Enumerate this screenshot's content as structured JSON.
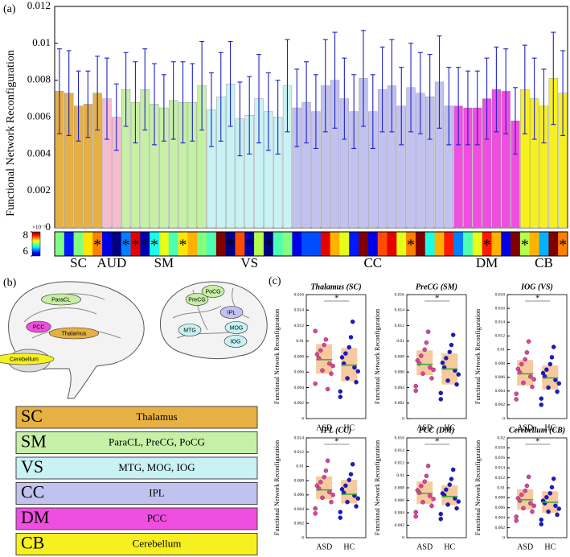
{
  "panel_labels": [
    "(a)",
    "(b)",
    "(c)"
  ],
  "chart_data": [
    {
      "type": "bar",
      "ylabel": "Functional Network Reconfiguration",
      "ylim": [
        0,
        0.012
      ],
      "yticks": [
        0,
        0.002,
        0.004,
        0.006,
        0.008,
        0.01,
        0.012
      ],
      "error_color": "#1e22c8",
      "series": [
        {
          "name": "SC",
          "color": "#e6b043",
          "values": [
            0.0074,
            0.0073,
            0.0066,
            0.0067,
            0.0073
          ],
          "errors": [
            0.0023,
            0.0023,
            0.0019,
            0.0018,
            0.002
          ]
        },
        {
          "name": "AUD",
          "color": "#f5bcd0",
          "values": [
            0.007,
            0.006
          ],
          "errors": [
            0.0022,
            0.0018
          ]
        },
        {
          "name": "SM",
          "color": "#c6f0a6",
          "values": [
            0.0075,
            0.0068,
            0.0075,
            0.0067,
            0.0065,
            0.0069,
            0.0068,
            0.0068,
            0.0077
          ],
          "errors": [
            0.002,
            0.0022,
            0.0022,
            0.0022,
            0.0018,
            0.0021,
            0.0022,
            0.0021,
            0.0024
          ]
        },
        {
          "name": "VS",
          "color": "#c8f2f4",
          "values": [
            0.0064,
            0.0071,
            0.0078,
            0.0059,
            0.0061,
            0.007,
            0.0063,
            0.006,
            0.0077
          ],
          "errors": [
            0.002,
            0.0024,
            0.0023,
            0.002,
            0.0021,
            0.0024,
            0.0021,
            0.002,
            0.0025
          ]
        },
        {
          "name": "CC",
          "color": "#c2c2f0",
          "values": [
            0.0065,
            0.0068,
            0.0063,
            0.0077,
            0.008,
            0.007,
            0.0063,
            0.0081,
            0.0063,
            0.0075,
            0.0077,
            0.0066,
            0.0076,
            0.0073,
            0.0071,
            0.0079,
            0.0066
          ],
          "errors": [
            0.0021,
            0.0022,
            0.002,
            0.0025,
            0.0026,
            0.0022,
            0.002,
            0.0026,
            0.002,
            0.0023,
            0.0025,
            0.0021,
            0.0024,
            0.0022,
            0.0023,
            0.0025,
            0.0021
          ]
        },
        {
          "name": "DM",
          "color": "#f04ee0",
          "values": [
            0.0066,
            0.0065,
            0.0065,
            0.007,
            0.0075,
            0.0074,
            0.0058
          ],
          "errors": [
            0.0021,
            0.002,
            0.002,
            0.0022,
            0.0023,
            0.0023,
            0.0018
          ]
        },
        {
          "name": "CB",
          "color": "#f7f020",
          "values": [
            0.0075,
            0.007,
            0.0066,
            0.0081,
            0.0073
          ],
          "errors": [
            0.0024,
            0.0022,
            0.002,
            0.0025,
            0.0023
          ]
        }
      ],
      "heatmap": {
        "scale_label": "×10⁻³",
        "range": [
          6,
          8
        ],
        "ticks": [
          8,
          6
        ],
        "star": "*",
        "values": [
          7.0,
          6.3,
          7.0,
          7.3,
          7.5,
          6.2,
          6.0,
          6.5,
          7.8,
          6.1,
          6.8,
          7.2,
          6.9,
          7.3,
          7.4,
          7.0,
          6.9,
          8.0,
          6.0,
          7.6,
          6.1,
          7.1,
          6.0,
          6.9,
          7.0,
          6.2,
          6.4,
          6.4,
          7.8,
          7.4,
          7.2,
          6.3,
          8.4,
          6.2,
          7.6,
          7.8,
          7.2,
          7.5,
          8.3,
          6.8,
          7.4,
          7.7,
          6.5,
          6.9,
          7.2,
          7.7,
          7.4,
          6.2,
          8.0,
          7.1,
          7.4,
          6.6,
          8.4,
          7.5
        ],
        "significant": [
          false,
          false,
          false,
          false,
          true,
          false,
          false,
          true,
          true,
          true,
          true,
          false,
          false,
          true,
          false,
          false,
          false,
          false,
          true,
          false,
          true,
          false,
          true,
          false,
          false,
          false,
          false,
          false,
          false,
          false,
          false,
          false,
          false,
          false,
          false,
          false,
          false,
          true,
          false,
          false,
          false,
          false,
          false,
          false,
          false,
          true,
          false,
          false,
          false,
          true,
          false,
          false,
          false,
          true
        ]
      }
    },
    {
      "type": "box",
      "title": "Thalamus (SC)",
      "ylim": [
        0,
        0.016
      ],
      "yticks": [
        0,
        0.002,
        0.004,
        0.006,
        0.008,
        0.01,
        0.012,
        0.014,
        0.016
      ],
      "significance": "*",
      "groups": [
        {
          "name": "ASD",
          "color": "#e0409e",
          "q1": 0.0058,
          "median": 0.0076,
          "q3": 0.0096,
          "points": [
            0.0045,
            0.0062,
            0.0071,
            0.0083,
            0.0095,
            0.0058,
            0.0078,
            0.0102,
            0.0068,
            0.0088,
            0.0038,
            0.0113
          ]
        },
        {
          "name": "HC",
          "color": "#1818d2",
          "q1": 0.0048,
          "median": 0.0069,
          "q3": 0.0091,
          "points": [
            0.0035,
            0.0052,
            0.0066,
            0.0079,
            0.0092,
            0.0047,
            0.0071,
            0.0105,
            0.0061,
            0.0084,
            0.0125,
            0.0028
          ]
        }
      ]
    },
    {
      "type": "box",
      "title": "PreCG (SM)",
      "ylim": [
        0,
        0.016
      ],
      "yticks": [
        0,
        0.002,
        0.004,
        0.006,
        0.008,
        0.01,
        0.012,
        0.014,
        0.016
      ],
      "significance": "*",
      "groups": [
        {
          "name": "ASD",
          "color": "#e0409e",
          "q1": 0.0056,
          "median": 0.007,
          "q3": 0.0088,
          "points": [
            0.0042,
            0.0058,
            0.0066,
            0.0075,
            0.0089,
            0.0052,
            0.0071,
            0.0098,
            0.0063,
            0.0081,
            0.0112,
            0.0036
          ]
        },
        {
          "name": "HC",
          "color": "#1818d2",
          "q1": 0.0044,
          "median": 0.0064,
          "q3": 0.0084,
          "points": [
            0.0033,
            0.0049,
            0.0062,
            0.0072,
            0.0086,
            0.0044,
            0.0066,
            0.0095,
            0.0057,
            0.0078,
            0.0108,
            0.0025
          ]
        }
      ]
    },
    {
      "type": "box",
      "title": "IOG (VS)",
      "ylim": [
        0,
        0.018
      ],
      "yticks": [
        0,
        0.002,
        0.004,
        0.006,
        0.008,
        0.01,
        0.012,
        0.014,
        0.016,
        0.018
      ],
      "significance": "*",
      "groups": [
        {
          "name": "ASD",
          "color": "#e0409e",
          "q1": 0.0048,
          "median": 0.0065,
          "q3": 0.0085,
          "points": [
            0.0036,
            0.0052,
            0.0061,
            0.0072,
            0.0086,
            0.0046,
            0.0067,
            0.0096,
            0.0057,
            0.0079,
            0.0112,
            0.0028
          ]
        },
        {
          "name": "HC",
          "color": "#1818d2",
          "q1": 0.0042,
          "median": 0.0059,
          "q3": 0.0077,
          "points": [
            0.0029,
            0.0045,
            0.0056,
            0.0066,
            0.0079,
            0.0039,
            0.0061,
            0.0089,
            0.0051,
            0.0071,
            0.0104,
            0.002
          ]
        }
      ]
    },
    {
      "type": "box",
      "title": "IPL (CC)",
      "ylim": [
        0,
        0.014
      ],
      "yticks": [
        0,
        0.002,
        0.004,
        0.006,
        0.008,
        0.01,
        0.012,
        0.014
      ],
      "significance": "*",
      "groups": [
        {
          "name": "ASD",
          "color": "#e0409e",
          "q1": 0.0054,
          "median": 0.0067,
          "q3": 0.0086,
          "points": [
            0.0041,
            0.0056,
            0.0064,
            0.0073,
            0.0085,
            0.005,
            0.0069,
            0.0094,
            0.006,
            0.0078,
            0.0108,
            0.0034
          ]
        },
        {
          "name": "HC",
          "color": "#1818d2",
          "q1": 0.0048,
          "median": 0.0061,
          "q3": 0.0081,
          "points": [
            0.0036,
            0.005,
            0.0059,
            0.0068,
            0.0081,
            0.0044,
            0.0063,
            0.0089,
            0.0055,
            0.0073,
            0.0103,
            0.0028
          ]
        }
      ]
    },
    {
      "type": "box",
      "title": "PCC (DM)",
      "ylim": [
        0,
        0.016
      ],
      "yticks": [
        0,
        0.002,
        0.004,
        0.006,
        0.008,
        0.01,
        0.012,
        0.014,
        0.016
      ],
      "significance": "*",
      "groups": [
        {
          "name": "ASD",
          "color": "#e0409e",
          "q1": 0.0054,
          "median": 0.0071,
          "q3": 0.009,
          "points": [
            0.0041,
            0.0057,
            0.0067,
            0.0076,
            0.009,
            0.0051,
            0.0072,
            0.0099,
            0.0062,
            0.0083,
            0.0115,
            0.0034
          ]
        },
        {
          "name": "HC",
          "color": "#1818d2",
          "q1": 0.0052,
          "median": 0.0066,
          "q3": 0.0084,
          "points": [
            0.0038,
            0.0053,
            0.0063,
            0.0071,
            0.0085,
            0.0047,
            0.0068,
            0.0094,
            0.0058,
            0.0077,
            0.0109,
            0.003
          ]
        }
      ]
    },
    {
      "type": "box",
      "title": "Cerebellum (CB)",
      "ylim": [
        0,
        0.02
      ],
      "yticks": [
        0,
        0.002,
        0.004,
        0.006,
        0.008,
        0.01,
        0.012,
        0.014,
        0.016,
        0.018,
        0.02
      ],
      "significance": "*",
      "groups": [
        {
          "name": "ASD",
          "color": "#e0409e",
          "q1": 0.0056,
          "median": 0.0076,
          "q3": 0.0097,
          "points": [
            0.0042,
            0.0059,
            0.0069,
            0.0079,
            0.0094,
            0.0052,
            0.0074,
            0.0104,
            0.0064,
            0.0086,
            0.0122,
            0.0034
          ]
        },
        {
          "name": "HC",
          "color": "#1818d2",
          "q1": 0.005,
          "median": 0.0071,
          "q3": 0.0093,
          "points": [
            0.0036,
            0.0052,
            0.0064,
            0.0074,
            0.0089,
            0.0046,
            0.0069,
            0.0101,
            0.0058,
            0.0081,
            0.0118,
            0.0027
          ]
        }
      ]
    }
  ],
  "box_style": {
    "ylabel": "Functional Network Reconfiguration",
    "box_color": "#f6c08e",
    "median_color": "#3aa83a"
  },
  "brain": {
    "sagittal_labels": [
      "ParaCL",
      "PCC",
      "Thalamus",
      "Cerebellum"
    ],
    "lateral_labels": [
      "PreCG",
      "PoCG",
      "IPL",
      "MTG",
      "MOG",
      "IOG"
    ]
  },
  "table": {
    "rows": [
      {
        "network": "SC",
        "regions": "Thalamus",
        "color": "#e6b043"
      },
      {
        "network": "SM",
        "regions": "ParaCL, PreCG, PoCG",
        "color": "#c6f0a6"
      },
      {
        "network": "VS",
        "regions": "MTG, MOG, IOG",
        "color": "#c8f2f4"
      },
      {
        "network": "CC",
        "regions": "IPL",
        "color": "#c2c2f0"
      },
      {
        "network": "DM",
        "regions": "PCC",
        "color": "#f04ee0"
      },
      {
        "network": "CB",
        "regions": "Cerebellum",
        "color": "#f7f020"
      }
    ]
  }
}
